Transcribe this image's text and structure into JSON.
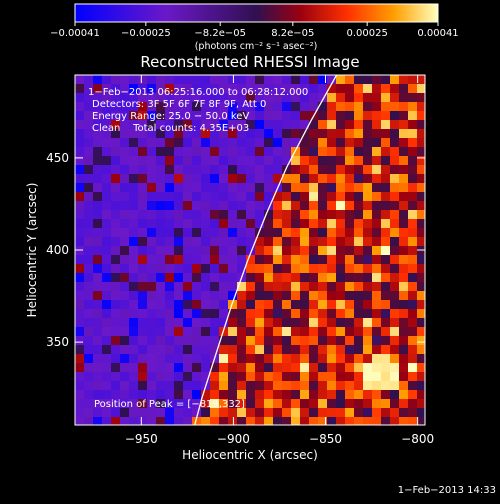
{
  "chart_data": {
    "type": "heatmap",
    "title": "Reconstructed RHESSI Image",
    "xlabel": "Heliocentric X (arcsec)",
    "ylabel": "Heliocentric Y (arcsec)",
    "xlim": [
      -986,
      -796
    ],
    "ylim": [
      305,
      495
    ],
    "x_ticks": [
      {
        "value": -950,
        "label": "−950"
      },
      {
        "value": -900,
        "label": "−900"
      },
      {
        "value": -850,
        "label": "−850"
      },
      {
        "value": -800,
        "label": "−800"
      }
    ],
    "y_ticks": [
      {
        "value": 350,
        "label": "350"
      },
      {
        "value": 400,
        "label": "400"
      },
      {
        "value": 450,
        "label": "450"
      }
    ],
    "colorbar": {
      "min": -0.00041,
      "max": 0.00041,
      "ticks": [
        {
          "value": -0.00041,
          "label": "−0.00041"
        },
        {
          "value": -0.00025,
          "label": "−0.00025"
        },
        {
          "value": -8.2e-05,
          "label": "−8.2e−05"
        },
        {
          "value": 8.2e-05,
          "label": "8.2e−05"
        },
        {
          "value": 0.00025,
          "label": "0.00025"
        },
        {
          "value": 0.00041,
          "label": "0.00041"
        }
      ],
      "unit_label": "(photons cm⁻² s⁻¹ asec⁻²)"
    },
    "annotations": [
      "1−Feb−2013 06:25:16.000 to 06:28:12.000",
      "Detectors: 3F 5F 6F 7F 8F 9F, Att 0",
      "Energy Range: 25.0 − 50.0 keV",
      "Clean    Total counts: 4.35E+03"
    ],
    "peak_label": "Position of Peak = [−819,332]",
    "peak": [
      -819,
      332
    ],
    "limb_curve": [
      [
        -844,
        495
      ],
      [
        -858,
        470
      ],
      [
        -871,
        445
      ],
      [
        -882,
        420
      ],
      [
        -892,
        395
      ],
      [
        -901,
        370
      ],
      [
        -909,
        345
      ],
      [
        -917,
        320
      ],
      [
        -921,
        305
      ]
    ],
    "grid": false
  },
  "footer": {
    "timestamp": "1−Feb−2013 14:33"
  }
}
